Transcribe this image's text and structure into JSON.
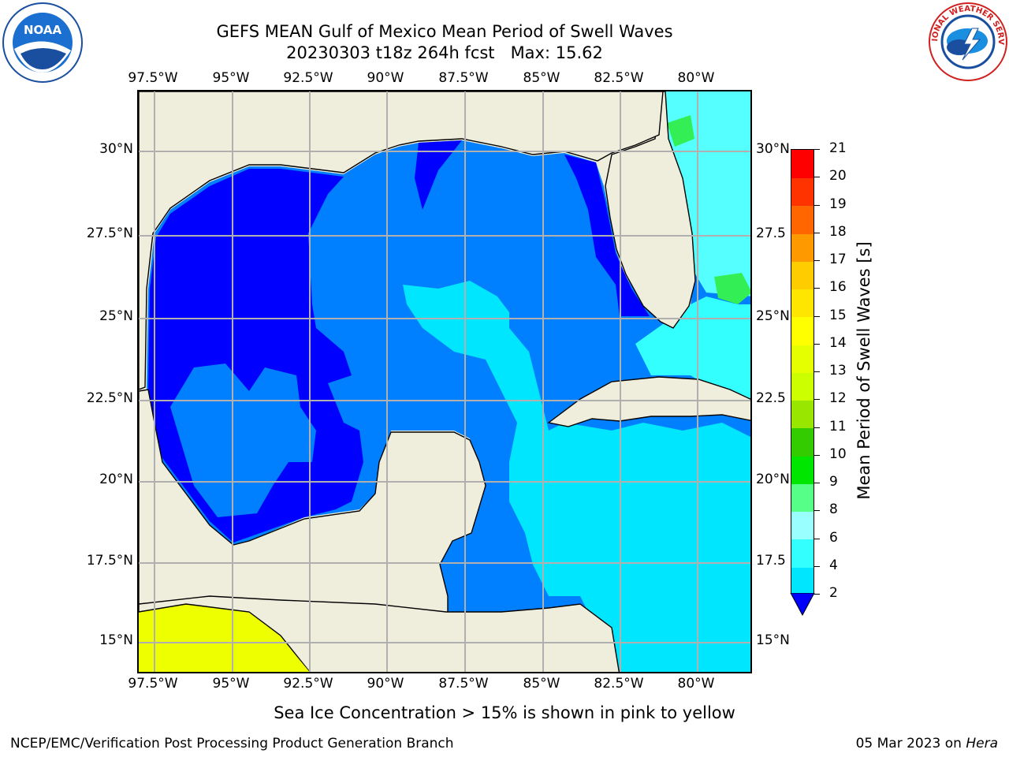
{
  "title": {
    "line1": "GEFS MEAN Gulf of Mexico Mean Period of Swell Waves",
    "line2": "20230303 t18z 264h fcst   Max: 15.62"
  },
  "axes": {
    "lon_ticks": [
      "97.5°W",
      "95°W",
      "92.5°W",
      "90°W",
      "87.5°W",
      "85°W",
      "82.5°W",
      "80°W"
    ],
    "lat_ticks_left": [
      "30°N",
      "27.5°N",
      "25°N",
      "22.5°N",
      "20°N",
      "17.5°N",
      "15°N"
    ],
    "lat_ticks_right": [
      "30°N",
      "27.5",
      "25°N",
      "22.5",
      "20°N",
      "17.5",
      "15°N"
    ]
  },
  "colorbar": {
    "title": "Mean Period of Swell Waves [s]",
    "tick_labels": [
      "2",
      "4",
      "6",
      "8",
      "9",
      "10",
      "11",
      "12",
      "13",
      "14",
      "15",
      "16",
      "17",
      "18",
      "19",
      "20",
      "21"
    ],
    "colors": [
      "#0080ff",
      "#00e6ff",
      "#33ffff",
      "#99ffff",
      "#55ff88",
      "#00e600",
      "#33cc00",
      "#99e600",
      "#ccff00",
      "#e6ff00",
      "#ffff00",
      "#ffe600",
      "#ffcc00",
      "#ff9900",
      "#ff6600",
      "#ff3300",
      "#ff0000"
    ],
    "under_color": "#0000ff"
  },
  "map": {
    "land_color": "#efeedc",
    "ocean_low_color": "#0000ff",
    "ocean_base_color": "#0080ff",
    "ocean_mid_color": "#00e6ff",
    "ocean_high_color": "#55ffff",
    "green_patch_color": "#33ee55",
    "pacific_color": "#eeff00",
    "gridline_color": "#b0b0b0"
  },
  "note": "Sea Ice Concentration > 15% is shown in pink to yellow",
  "footer": {
    "left": "NCEP/EMC/Verification Post Processing Product Generation Branch",
    "right_date": "05 Mar 2023 on",
    "right_machine": "Hera"
  },
  "logos": {
    "left_text": "NOAA",
    "right_text": "NATIONAL WEATHER SERVICE"
  }
}
